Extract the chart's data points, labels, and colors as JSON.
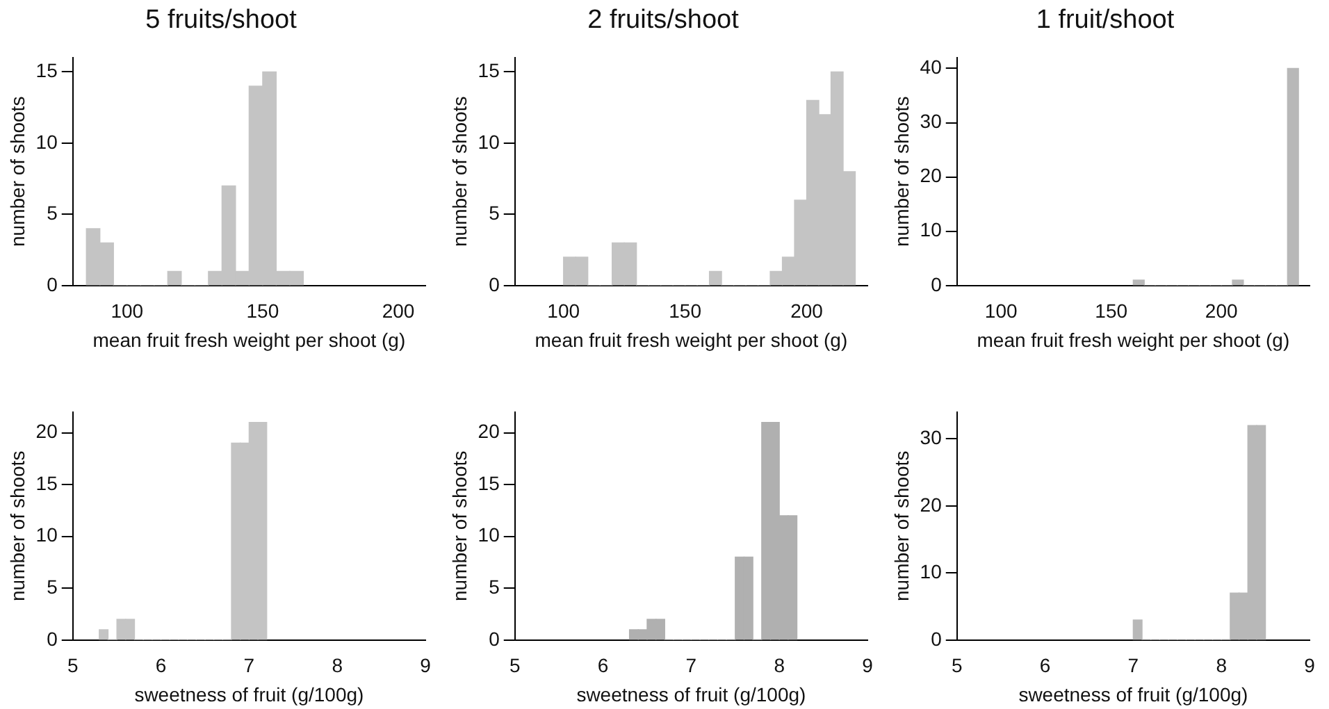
{
  "chart_data": [
    {
      "type": "histogram",
      "title": "5 fruits/shoot",
      "xlabel": "mean fruit fresh weight per shoot (g)",
      "ylabel": "number of shoots",
      "color": "#c4c4c4",
      "bins": [
        85,
        90,
        95,
        100,
        105,
        110,
        115,
        120,
        125,
        130,
        135,
        140,
        145,
        150,
        155,
        160,
        165
      ],
      "values": [
        4,
        3,
        0,
        0,
        0,
        0,
        1,
        0,
        0,
        1,
        7,
        1,
        14,
        15,
        1,
        1
      ],
      "xlim": [
        80,
        210
      ],
      "xticks": [
        100,
        150,
        200
      ],
      "ylim": [
        0,
        16
      ],
      "yticks": [
        0,
        5,
        10,
        15
      ],
      "grid": false,
      "legend": false
    },
    {
      "type": "histogram",
      "title": "2 fruits/shoot",
      "xlabel": "mean fruit fresh weight per shoot (g)",
      "ylabel": "number of shoots",
      "color": "#c4c4c4",
      "bins": [
        100,
        105,
        110,
        115,
        120,
        125,
        130,
        135,
        140,
        145,
        150,
        155,
        160,
        165,
        170,
        175,
        180,
        185,
        190,
        195,
        200,
        205,
        210,
        215,
        220
      ],
      "values": [
        2,
        2,
        0,
        0,
        3,
        3,
        0,
        0,
        0,
        0,
        0,
        0,
        1,
        0,
        0,
        0,
        0,
        1,
        2,
        6,
        13,
        12,
        15,
        8
      ],
      "xlim": [
        80,
        225
      ],
      "xticks": [
        100,
        150,
        200
      ],
      "ylim": [
        0,
        16
      ],
      "yticks": [
        0,
        5,
        10,
        15
      ],
      "grid": false,
      "legend": false
    },
    {
      "type": "histogram",
      "title": "1 fruit/shoot",
      "xlabel": "mean fruit fresh weight per shoot (g)",
      "ylabel": "number of shoots",
      "color": "#b8b8b8",
      "bins": [
        160,
        165,
        170,
        175,
        180,
        185,
        190,
        195,
        200,
        205,
        210,
        215,
        220,
        225,
        230,
        235
      ],
      "values": [
        1,
        0,
        0,
        0,
        0,
        0,
        0,
        0,
        0,
        1,
        0,
        0,
        0,
        0,
        40
      ],
      "xlim": [
        80,
        240
      ],
      "xticks": [
        100,
        150,
        200
      ],
      "ylim": [
        0,
        42
      ],
      "yticks": [
        0,
        10,
        20,
        30,
        40
      ],
      "grid": false,
      "legend": false
    },
    {
      "type": "histogram",
      "xlabel": "sweetness of fruit (g/100g)",
      "ylabel": "number of shoots",
      "color": "#c4c4c4",
      "bins": [
        5.3,
        5.4,
        5.5,
        5.6,
        5.7,
        5.8,
        5.9,
        6.0,
        6.1,
        6.2,
        6.3,
        6.4,
        6.5,
        6.6,
        6.7,
        6.8,
        6.9,
        7.0,
        7.1,
        7.2
      ],
      "values": [
        1,
        0,
        2,
        2,
        0,
        0,
        0,
        0,
        0,
        0,
        0,
        0,
        0,
        0,
        0,
        19,
        19,
        21,
        21
      ],
      "xlim": [
        5,
        9
      ],
      "xticks": [
        5,
        6,
        7,
        8,
        9
      ],
      "ylim": [
        0,
        22
      ],
      "yticks": [
        0,
        5,
        10,
        15,
        20
      ],
      "grid": false,
      "legend": false
    },
    {
      "type": "histogram",
      "xlabel": "sweetness of fruit (g/100g)",
      "ylabel": "number of shoots",
      "color": "#b0b0b0",
      "bins": [
        6.3,
        6.4,
        6.5,
        6.6,
        6.7,
        6.8,
        6.9,
        7.0,
        7.1,
        7.2,
        7.3,
        7.4,
        7.5,
        7.6,
        7.7,
        7.8,
        7.9,
        8.0,
        8.1,
        8.2
      ],
      "values": [
        1,
        1,
        2,
        2,
        0,
        0,
        0,
        0,
        0,
        0,
        0,
        0,
        8,
        8,
        0,
        21,
        21,
        12,
        12
      ],
      "xlim": [
        5,
        9
      ],
      "xticks": [
        5,
        6,
        7,
        8,
        9
      ],
      "ylim": [
        0,
        22
      ],
      "yticks": [
        0,
        5,
        10,
        15,
        20
      ],
      "grid": false,
      "legend": false
    },
    {
      "type": "histogram",
      "xlabel": "sweetness of fruit (g/100g)",
      "ylabel": "number of shoots",
      "color": "#b8b8b8",
      "bins": [
        7.0,
        7.1,
        7.2,
        7.3,
        7.4,
        7.5,
        7.6,
        7.7,
        7.8,
        7.9,
        8.0,
        8.1,
        8.2,
        8.3,
        8.4,
        8.5
      ],
      "values": [
        3,
        0,
        0,
        0,
        0,
        0,
        0,
        0,
        0,
        0,
        0,
        7,
        7,
        32,
        32
      ],
      "xlim": [
        5,
        9
      ],
      "xticks": [
        5,
        6,
        7,
        8,
        9
      ],
      "ylim": [
        0,
        34
      ],
      "yticks": [
        0,
        10,
        20,
        30
      ],
      "grid": false,
      "legend": false
    }
  ]
}
